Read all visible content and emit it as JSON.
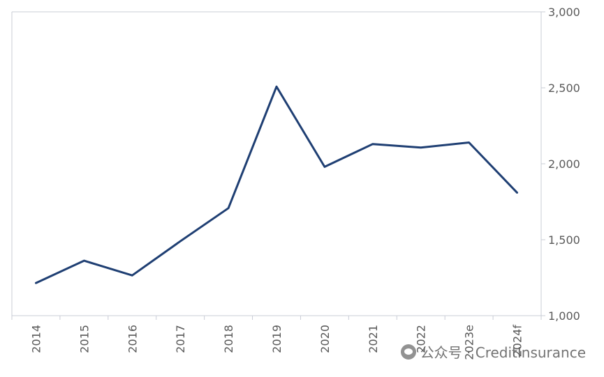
{
  "chart_data": {
    "type": "line",
    "categories": [
      "2014",
      "2015",
      "2016",
      "2017",
      "2018",
      "2019",
      "2020",
      "2021",
      "2022",
      "2023e",
      "2024f"
    ],
    "series": [
      {
        "values": [
          1215,
          1362,
          1265,
          1490,
          1708,
          2508,
          1980,
          2130,
          2107,
          2140,
          1810
        ]
      }
    ],
    "y_ticks": [
      "1,000",
      "1,500",
      "2,000",
      "2,500",
      "3,000"
    ],
    "ylim": [
      1000,
      3000
    ],
    "y_axis_side": "right",
    "title": "",
    "xlabel": "",
    "ylabel": "",
    "grid": false,
    "colors": {
      "line": "#1F3F73",
      "axis": "#C9CCD6",
      "text": "#595959"
    }
  },
  "watermark": {
    "text": "公众号 · CreditInsurance"
  }
}
